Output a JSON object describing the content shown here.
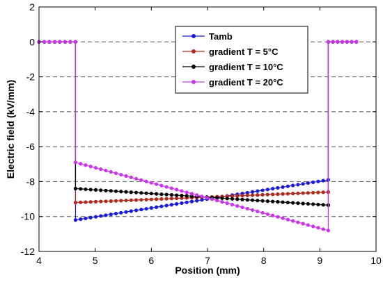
{
  "chart_data": {
    "type": "line",
    "xlabel": "Position (mm)",
    "ylabel": "Electric field (kV/mm)",
    "xlim": [
      4,
      10
    ],
    "ylim": [
      -12,
      2
    ],
    "xticks": [
      "4",
      "5",
      "6",
      "7",
      "8",
      "9",
      "10"
    ],
    "yticks": [
      "2",
      "0",
      "-2",
      "-4",
      "-6",
      "-8",
      "-10",
      "-12"
    ],
    "grid": "horizontal dashed",
    "legend_position": "top-right",
    "series": [
      {
        "name": "Tamb",
        "color": "#1a1adb",
        "x": [
          4.0,
          4.65,
          4.65,
          9.15,
          9.15,
          9.65
        ],
        "y": [
          0,
          0,
          -10.2,
          -7.9,
          0,
          0
        ]
      },
      {
        "name": "gradient T = 5°C",
        "color": "#b02a1e",
        "x": [
          4.0,
          4.65,
          4.65,
          9.15,
          9.15,
          9.65
        ],
        "y": [
          0,
          0,
          -9.2,
          -8.6,
          0,
          0
        ]
      },
      {
        "name": "gradient T = 10°C",
        "color": "#000000",
        "x": [
          4.0,
          4.65,
          4.65,
          9.15,
          9.15,
          9.65
        ],
        "y": [
          0,
          0,
          -8.4,
          -9.35,
          0,
          0
        ]
      },
      {
        "name": "gradient T = 20°C",
        "color": "#cc33ee",
        "x": [
          4.0,
          4.65,
          4.65,
          9.15,
          9.15,
          9.65
        ],
        "y": [
          0,
          0,
          -6.9,
          -10.8,
          0,
          0
        ]
      }
    ]
  }
}
